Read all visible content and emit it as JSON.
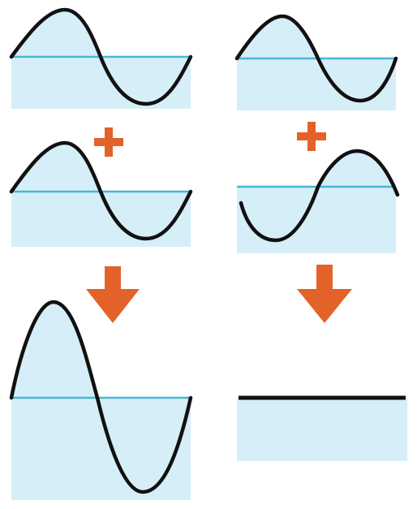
{
  "colors": {
    "area_fill": "#d6eef7",
    "baseline": "#49b7d3",
    "wave": "#111111",
    "operator": "#e3622a"
  },
  "columns": [
    {
      "name": "constructive-interference",
      "panels": [
        {
          "role": "input-wave",
          "phase_deg": 0,
          "amplitude": 1,
          "cycles": 1
        },
        {
          "role": "input-wave",
          "phase_deg": 0,
          "amplitude": 1,
          "cycles": 1
        },
        {
          "role": "result-wave",
          "phase_deg": 0,
          "amplitude": 2,
          "cycles": 1
        }
      ],
      "operators": [
        {
          "type": "plus-icon"
        },
        {
          "type": "down-arrow-icon"
        }
      ]
    },
    {
      "name": "destructive-interference",
      "panels": [
        {
          "role": "input-wave",
          "phase_deg": 0,
          "amplitude": 1,
          "cycles": 1
        },
        {
          "role": "input-wave",
          "phase_deg": 180,
          "amplitude": 1,
          "cycles": 1
        },
        {
          "role": "result-flat-line",
          "phase_deg": 0,
          "amplitude": 0,
          "cycles": 1
        }
      ],
      "operators": [
        {
          "type": "plus-icon"
        },
        {
          "type": "down-arrow-icon"
        }
      ]
    }
  ]
}
